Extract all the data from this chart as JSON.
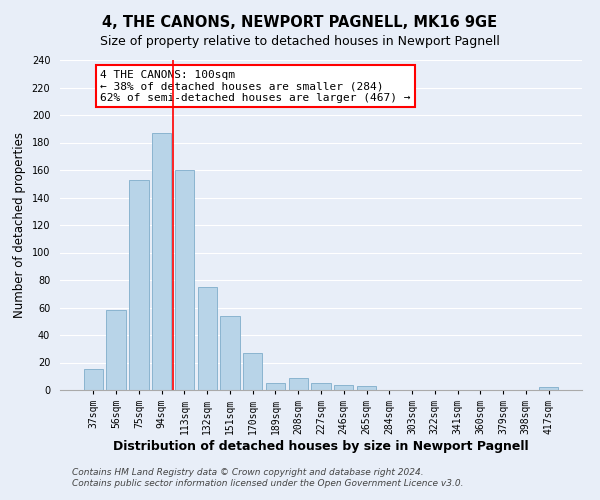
{
  "title": "4, THE CANONS, NEWPORT PAGNELL, MK16 9GE",
  "subtitle": "Size of property relative to detached houses in Newport Pagnell",
  "xlabel": "Distribution of detached houses by size in Newport Pagnell",
  "ylabel": "Number of detached properties",
  "bar_labels": [
    "37sqm",
    "56sqm",
    "75sqm",
    "94sqm",
    "113sqm",
    "132sqm",
    "151sqm",
    "170sqm",
    "189sqm",
    "208sqm",
    "227sqm",
    "246sqm",
    "265sqm",
    "284sqm",
    "303sqm",
    "322sqm",
    "341sqm",
    "360sqm",
    "379sqm",
    "398sqm",
    "417sqm"
  ],
  "bar_values": [
    15,
    58,
    153,
    187,
    160,
    75,
    54,
    27,
    5,
    9,
    5,
    4,
    3,
    0,
    0,
    0,
    0,
    0,
    0,
    0,
    2
  ],
  "bar_color": "#b8d4e8",
  "bar_edge_color": "#8ab4d0",
  "vline_x": 3.5,
  "vline_color": "red",
  "annotation_text": "4 THE CANONS: 100sqm\n← 38% of detached houses are smaller (284)\n62% of semi-detached houses are larger (467) →",
  "annotation_box_color": "white",
  "annotation_box_edge_color": "red",
  "ylim": [
    0,
    240
  ],
  "yticks": [
    0,
    20,
    40,
    60,
    80,
    100,
    120,
    140,
    160,
    180,
    200,
    220,
    240
  ],
  "footnote1": "Contains HM Land Registry data © Crown copyright and database right 2024.",
  "footnote2": "Contains public sector information licensed under the Open Government Licence v3.0.",
  "title_fontsize": 10.5,
  "subtitle_fontsize": 9,
  "xlabel_fontsize": 9,
  "ylabel_fontsize": 8.5,
  "tick_fontsize": 7,
  "annotation_fontsize": 8,
  "footnote_fontsize": 6.5,
  "background_color": "#e8eef8"
}
